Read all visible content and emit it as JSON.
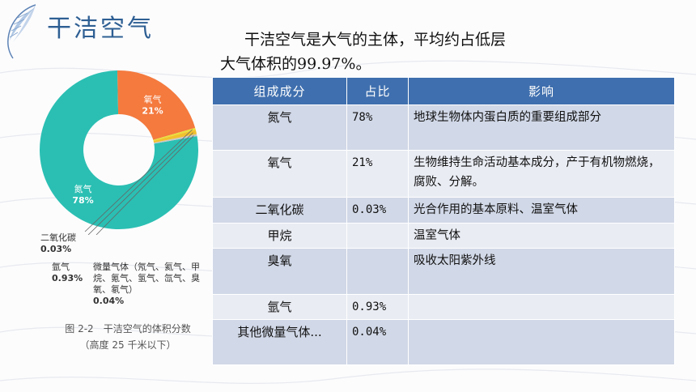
{
  "slide": {
    "title": "干洁空气",
    "intro_line1": "干洁空气是大气的主体，平均约占低层",
    "intro_line2": "大气体积的99.97%。"
  },
  "chart_data": {
    "type": "pie",
    "variant": "donut",
    "slices": [
      {
        "label": "氮气",
        "value": 78,
        "value_label": "78%",
        "color": "#2bbfb3"
      },
      {
        "label": "氧气",
        "value": 21,
        "value_label": "21%",
        "color": "#f47a3e"
      },
      {
        "label": "二氧化碳",
        "value": 0.03,
        "value_label": "0.03%",
        "color": "#e8e03a"
      },
      {
        "label": "氩气",
        "value": 0.93,
        "value_label": "0.93%",
        "color": "#f2c12e"
      },
      {
        "label": "微量气体（氖气、氦气、甲烷、氪气、氢气、氙气、臭氧、氡气）",
        "value": 0.04,
        "value_label": "0.04%",
        "color": "#c7c7c7"
      }
    ],
    "annotations": {
      "co2_name": "二氧化碳",
      "co2_value": "0.03%",
      "ar_name": "氩气",
      "ar_value": "0.93%",
      "trace_name": "微量气体（氖气、氦气、甲烷、氪气、氢气、氙气、臭氧、氡气）",
      "trace_value": "0.04%"
    },
    "caption_line1": "图 2-2　干洁空气的体积分数",
    "caption_line2": "（高度 25 千米以下）"
  },
  "table": {
    "headers": [
      "组成成分",
      "占比",
      "影响"
    ],
    "rows": [
      {
        "component": "氮气",
        "share": "78%",
        "effect": "地球生物体内蛋白质的重要组成部分"
      },
      {
        "component": "氧气",
        "share": "21%",
        "effect": "生物维持生命活动基本成分，产于有机物燃烧，腐败、分解。"
      },
      {
        "component": "二氧化碳",
        "share": "0.03%",
        "effect": "光合作用的基本原料、温室气体"
      },
      {
        "component": "甲烷",
        "share": "",
        "effect": "温室气体"
      },
      {
        "component": "臭氧",
        "share": "",
        "effect": "吸收太阳紫外线"
      },
      {
        "component": "氩气",
        "share": "0.93%",
        "effect": ""
      },
      {
        "component": "其他微量气体...",
        "share": "0.04%",
        "effect": ""
      }
    ]
  },
  "colors": {
    "title": "#2e5f93",
    "table_header": "#3f6fae",
    "row_dark": "#d1d8e7",
    "row_light": "#e9ecf3"
  }
}
